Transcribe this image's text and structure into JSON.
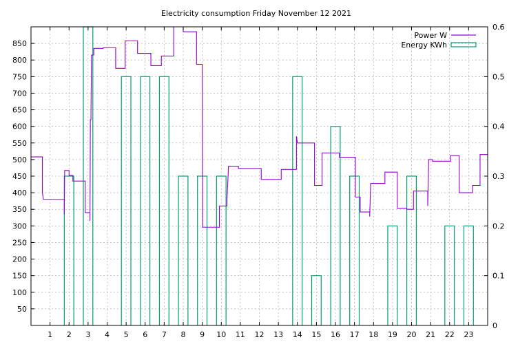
{
  "chart_data": {
    "type": "line",
    "title": "Electricity consumption Friday November 12 2021",
    "xlabel": "",
    "ylabel": "",
    "y2label": "",
    "xlim": [
      0,
      24
    ],
    "ylim": [
      0,
      900
    ],
    "y2lim": [
      0,
      0.6
    ],
    "x_ticks": [
      1,
      2,
      3,
      4,
      5,
      6,
      7,
      8,
      9,
      10,
      11,
      12,
      13,
      14,
      15,
      16,
      17,
      18,
      19,
      20,
      21,
      22,
      23
    ],
    "y_ticks": [
      50,
      100,
      150,
      200,
      250,
      300,
      350,
      400,
      450,
      500,
      550,
      600,
      650,
      700,
      750,
      800,
      850
    ],
    "y2_ticks": [
      0,
      0.1,
      0.2,
      0.3,
      0.4,
      0.5,
      0.6
    ],
    "grid": true,
    "legend_position": "top-right",
    "colors": {
      "power": "#9400d3",
      "energy": "#009e73"
    },
    "series": [
      {
        "name": "Power W",
        "axis": "left",
        "style": "steps",
        "points": [
          [
            0,
            508
          ],
          [
            0.6,
            508
          ],
          [
            0.6,
            400
          ],
          [
            0.65,
            380
          ],
          [
            1.75,
            380
          ],
          [
            1.75,
            335
          ],
          [
            1.77,
            467
          ],
          [
            2.0,
            467
          ],
          [
            2.0,
            452
          ],
          [
            2.2,
            452
          ],
          [
            2.2,
            435
          ],
          [
            2.85,
            435
          ],
          [
            2.85,
            340
          ],
          [
            3.1,
            340
          ],
          [
            3.1,
            315
          ],
          [
            3.12,
            620
          ],
          [
            3.15,
            620
          ],
          [
            3.18,
            815
          ],
          [
            3.3,
            815
          ],
          [
            3.3,
            835
          ],
          [
            3.8,
            835
          ],
          [
            3.8,
            837
          ],
          [
            4.45,
            837
          ],
          [
            4.45,
            775
          ],
          [
            4.95,
            775
          ],
          [
            4.95,
            858
          ],
          [
            5.6,
            858
          ],
          [
            5.6,
            820
          ],
          [
            6.3,
            820
          ],
          [
            6.3,
            783
          ],
          [
            6.85,
            783
          ],
          [
            6.85,
            812
          ],
          [
            7.5,
            812
          ],
          [
            7.5,
            905
          ],
          [
            8.0,
            905
          ],
          [
            8.0,
            885
          ],
          [
            8.7,
            885
          ],
          [
            8.7,
            787
          ],
          [
            9.0,
            787
          ],
          [
            9.0,
            750
          ],
          [
            9.02,
            296
          ],
          [
            9.9,
            296
          ],
          [
            9.9,
            360
          ],
          [
            10.3,
            360
          ],
          [
            10.3,
            380
          ],
          [
            10.38,
            480
          ],
          [
            10.9,
            480
          ],
          [
            10.9,
            473
          ],
          [
            12.1,
            473
          ],
          [
            12.1,
            440
          ],
          [
            13.15,
            440
          ],
          [
            13.15,
            470
          ],
          [
            13.95,
            470
          ],
          [
            13.95,
            570
          ],
          [
            14.0,
            550
          ],
          [
            14.9,
            550
          ],
          [
            14.9,
            422
          ],
          [
            15.3,
            422
          ],
          [
            15.3,
            520
          ],
          [
            16.2,
            520
          ],
          [
            16.2,
            507
          ],
          [
            17.05,
            507
          ],
          [
            17.05,
            387
          ],
          [
            17.3,
            387
          ],
          [
            17.3,
            342
          ],
          [
            17.8,
            342
          ],
          [
            17.8,
            328
          ],
          [
            17.85,
            428
          ],
          [
            18.6,
            428
          ],
          [
            18.6,
            462
          ],
          [
            19.25,
            462
          ],
          [
            19.25,
            353
          ],
          [
            19.75,
            353
          ],
          [
            19.75,
            350
          ],
          [
            20.1,
            350
          ],
          [
            20.1,
            405
          ],
          [
            20.85,
            405
          ],
          [
            20.85,
            360
          ],
          [
            20.9,
            500
          ],
          [
            21.1,
            500
          ],
          [
            21.1,
            495
          ],
          [
            22.05,
            495
          ],
          [
            22.05,
            512
          ],
          [
            22.5,
            512
          ],
          [
            22.5,
            400
          ],
          [
            23.2,
            400
          ],
          [
            23.2,
            422
          ],
          [
            23.6,
            422
          ],
          [
            23.6,
            515
          ],
          [
            24,
            515
          ]
        ]
      },
      {
        "name": "Energy KWh",
        "axis": "right",
        "style": "boxes",
        "bars": [
          {
            "x": 2,
            "value": 0.3
          },
          {
            "x": 3,
            "value": 0.6
          },
          {
            "x": 5,
            "value": 0.5
          },
          {
            "x": 6,
            "value": 0.5
          },
          {
            "x": 7,
            "value": 0.5
          },
          {
            "x": 8,
            "value": 0.3
          },
          {
            "x": 9,
            "value": 0.3
          },
          {
            "x": 10,
            "value": 0.3
          },
          {
            "x": 14,
            "value": 0.5
          },
          {
            "x": 15,
            "value": 0.1
          },
          {
            "x": 16,
            "value": 0.4
          },
          {
            "x": 17,
            "value": 0.3
          },
          {
            "x": 19,
            "value": 0.2
          },
          {
            "x": 20,
            "value": 0.3
          },
          {
            "x": 22,
            "value": 0.2
          },
          {
            "x": 23,
            "value": 0.2
          }
        ]
      }
    ]
  }
}
